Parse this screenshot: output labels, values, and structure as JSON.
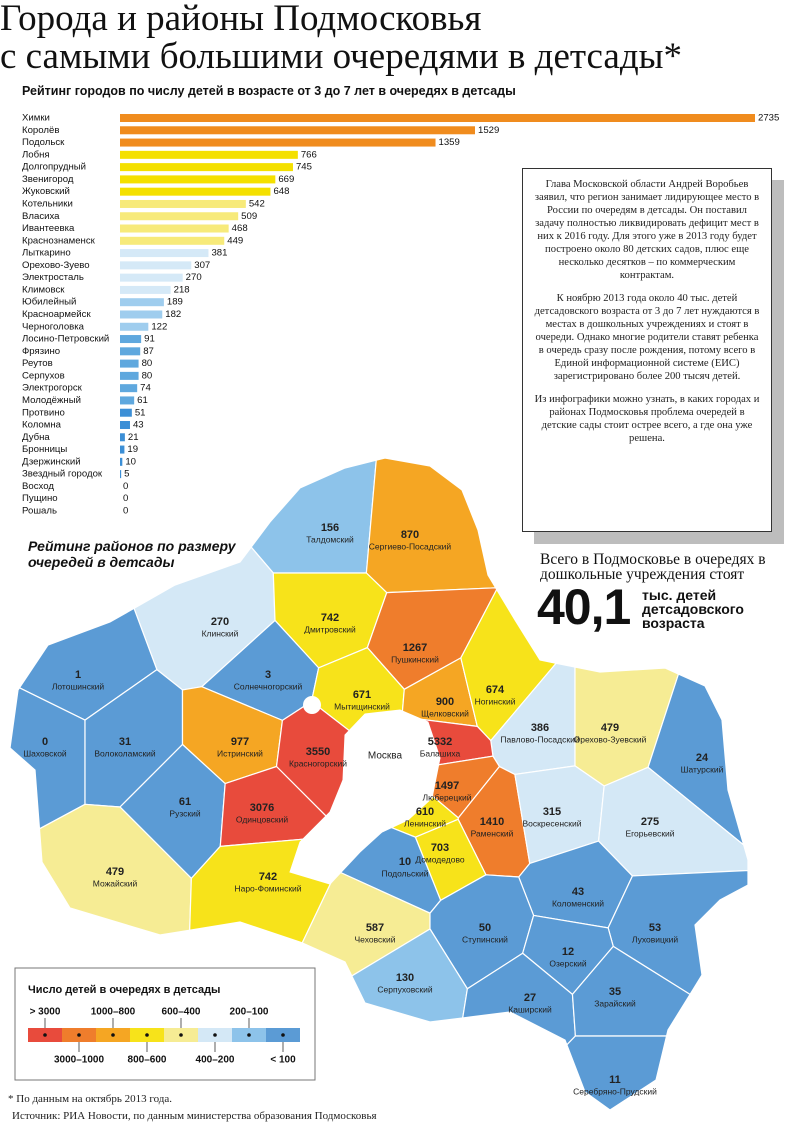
{
  "header": {
    "title_line1": "Города и районы Подмосковья",
    "title_line2": "с самыми большими очередями в детсады*"
  },
  "chart_data": {
    "type": "bar",
    "orientation": "horizontal",
    "title": "Рейтинг городов по числу детей в возрасте от 3 до 7 лет в очередях в детсады",
    "categories": [
      "Химки",
      "Королёв",
      "Подольск",
      "Лобня",
      "Долгопрудный",
      "Звенигород",
      "Жуковский",
      "Котельники",
      "Власиха",
      "Ивантеевка",
      "Краснознаменск",
      "Лыткарино",
      "Орехово-Зуево",
      "Электросталь",
      "Климовск",
      "Юбилейный",
      "Красноармейск",
      "Черноголовка",
      "Лосино-Петровский",
      "Фрязино",
      "Реутов",
      "Серпухов",
      "Электрогорск",
      "Молодёжный",
      "Протвино",
      "Коломна",
      "Дубна",
      "Бронницы",
      "Дзержинский",
      "Звездный городок",
      "Восход",
      "Пущино",
      "Рошаль"
    ],
    "values": [
      2735,
      1529,
      1359,
      766,
      745,
      669,
      648,
      542,
      509,
      468,
      449,
      381,
      307,
      270,
      218,
      189,
      182,
      122,
      91,
      87,
      80,
      80,
      74,
      61,
      51,
      43,
      21,
      19,
      10,
      5,
      0,
      0,
      0
    ],
    "colors": [
      "#f08c1e",
      "#f08c1e",
      "#f08c1e",
      "#f4e000",
      "#f4e000",
      "#f4e000",
      "#f4e000",
      "#f7ea7a",
      "#f7ea7a",
      "#f7ea7a",
      "#f7ea7a",
      "#d5e9f7",
      "#d5e9f7",
      "#d5e9f7",
      "#d5e9f7",
      "#9fcdee",
      "#9fcdee",
      "#9fcdee",
      "#5fa8de",
      "#5fa8de",
      "#5fa8de",
      "#5fa8de",
      "#5fa8de",
      "#5fa8de",
      "#3c8fd6",
      "#3c8fd6",
      "#3c8fd6",
      "#3c8fd6",
      "#3c8fd6",
      "#3c8fd6",
      "#3c8fd6",
      "#3c8fd6",
      "#3c8fd6"
    ]
  },
  "map": {
    "type": "choropleth",
    "title": "Рейтинг районов по размеру очередей в детсады",
    "city_label": "Москва",
    "districts": [
      {
        "name": "Талдомский",
        "value": 156,
        "color": "#8dc3ea"
      },
      {
        "name": "Сергиево-Посадский",
        "value": 870,
        "color": "#f5a623"
      },
      {
        "name": "Клинский",
        "value": 270,
        "color": "#d4e8f6"
      },
      {
        "name": "Дмитровский",
        "value": 742,
        "color": "#f7e31a"
      },
      {
        "name": "Пушкинский",
        "value": 1267,
        "color": "#ef7d2c"
      },
      {
        "name": "Лотошинский",
        "value": 1,
        "color": "#5b9bd5"
      },
      {
        "name": "Солнечногорский",
        "value": 3,
        "color": "#5b9bd5"
      },
      {
        "name": "Мытищинский",
        "value": 671,
        "color": "#f7e31a"
      },
      {
        "name": "Щелковский",
        "value": 900,
        "color": "#f5a623"
      },
      {
        "name": "Ногинский",
        "value": 674,
        "color": "#f7e31a"
      },
      {
        "name": "Павлово-Посадский",
        "value": 386,
        "color": "#d4e8f6"
      },
      {
        "name": "Орехово-Зуевский",
        "value": 479,
        "color": "#f6ec94"
      },
      {
        "name": "Шаховской",
        "value": 0,
        "color": "#5b9bd5"
      },
      {
        "name": "Волоколамский",
        "value": 31,
        "color": "#5b9bd5"
      },
      {
        "name": "Истринский",
        "value": 977,
        "color": "#f5a623"
      },
      {
        "name": "Красногорский",
        "value": 3550,
        "color": "#e84b3c"
      },
      {
        "name": "Балашиха",
        "value": 5332,
        "color": "#e84b3c"
      },
      {
        "name": "Шатурский",
        "value": 24,
        "color": "#5b9bd5"
      },
      {
        "name": "Рузский",
        "value": 61,
        "color": "#5b9bd5"
      },
      {
        "name": "Одинцовский",
        "value": 3076,
        "color": "#e84b3c"
      },
      {
        "name": "Люберецкий",
        "value": 1497,
        "color": "#ef7d2c"
      },
      {
        "name": "Ленинский",
        "value": 610,
        "color": "#f7e31a"
      },
      {
        "name": "Раменский",
        "value": 1410,
        "color": "#ef7d2c"
      },
      {
        "name": "Воскресенский",
        "value": 315,
        "color": "#d4e8f6"
      },
      {
        "name": "Егорьевский",
        "value": 275,
        "color": "#d4e8f6"
      },
      {
        "name": "Домодедово",
        "value": 703,
        "color": "#f7e31a"
      },
      {
        "name": "Подольский",
        "value": 10,
        "color": "#5b9bd5"
      },
      {
        "name": "Можайский",
        "value": 479,
        "color": "#f6ec94"
      },
      {
        "name": "Наро-Фоминский",
        "value": 742,
        "color": "#f7e31a"
      },
      {
        "name": "Коломенский",
        "value": 43,
        "color": "#5b9bd5"
      },
      {
        "name": "Чеховский",
        "value": 587,
        "color": "#f6ec94"
      },
      {
        "name": "Ступинский",
        "value": 50,
        "color": "#5b9bd5"
      },
      {
        "name": "Луховицкий",
        "value": 53,
        "color": "#5b9bd5"
      },
      {
        "name": "Озерский",
        "value": 12,
        "color": "#5b9bd5"
      },
      {
        "name": "Серпуховский",
        "value": 130,
        "color": "#8dc3ea"
      },
      {
        "name": "Каширский",
        "value": 27,
        "color": "#5b9bd5"
      },
      {
        "name": "Зарайский",
        "value": 35,
        "color": "#5b9bd5"
      },
      {
        "name": "Серебряно-Прудский",
        "value": 11,
        "color": "#5b9bd5"
      }
    ],
    "legend": {
      "title": "Число детей в очередях в детсады",
      "entries": [
        {
          "label": "> 3000",
          "color": "#e84b3c"
        },
        {
          "label": "3000–1000",
          "color": "#ef7d2c"
        },
        {
          "label": "1000–800",
          "color": "#f5a623"
        },
        {
          "label": "800–600",
          "color": "#f7e31a"
        },
        {
          "label": "600–400",
          "color": "#f6ec94"
        },
        {
          "label": "400–200",
          "color": "#d4e8f6"
        },
        {
          "label": "200–100",
          "color": "#8dc3ea"
        },
        {
          "label": "< 100",
          "color": "#5b9bd5"
        }
      ]
    }
  },
  "note": {
    "paragraphs": [
      "Глава Московской области Андрей Воробьев заявил, что регион занимает лидирующее место в России по очередям в детсады. Он поставил задачу полностью ликвидировать дефицит мест в них к 2016 году. Для этого уже в 2013 году будет построено около 80 детских садов, плюс еще несколько десятков – по коммерческим контрактам.",
      "К ноябрю 2013 года около 40 тыс. детей детсадовского возраста от 3 до 7 лет нуждаются в местах в дошкольных учреждениях и стоят в очереди. Однако многие родители ставят ребенка в очередь сразу после рождения, потому всего в Единой информационной системе (ЕИС) зарегистрировано более 200 тысяч детей.",
      "Из инфографики можно узнать, в каких городах и районах Подмосковья проблема очередей в детские сады стоит острее всего, а где она уже решена."
    ]
  },
  "total": {
    "lead": "Всего в Подмосковье в очередях в дошкольные учреждения стоят",
    "number": "40,1",
    "unit": "тыс. детей детсадовского возраста"
  },
  "footer": {
    "footnote": "* По данным на октябрь 2013 года.",
    "source": "Источник: РИА Новости, по данным министерства образования Подмосковья"
  }
}
